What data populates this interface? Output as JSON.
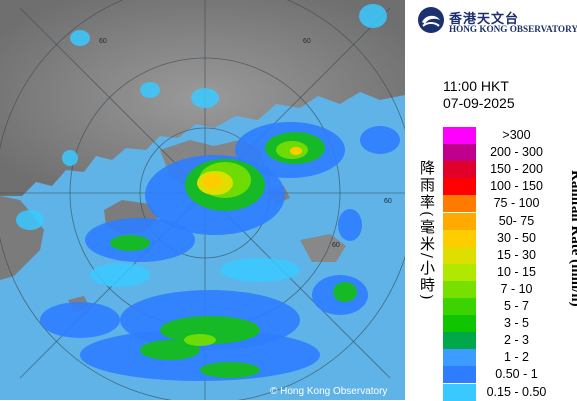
{
  "logo": {
    "chinese_name": "香港天文台",
    "english_name": "HONG KONG OBSERVATORY"
  },
  "time": "11:00 HKT",
  "date": "07-09-2025",
  "unit_label": "Rainfall Rate (mm/h)",
  "unit_label_zh": "降雨率(毫米/小時)",
  "copyright": "© Hong Kong Observatory",
  "range_ring_labels": [
    "60",
    "60",
    "60",
    "60"
  ],
  "legend": [
    {
      "label": ">300",
      "color": "#ff00ff"
    },
    {
      "label": "200 - 300",
      "color": "#c0008c"
    },
    {
      "label": "150 - 200",
      "color": "#e0002a"
    },
    {
      "label": "100 - 150",
      "color": "#ff0000"
    },
    {
      "label": "75 - 100",
      "color": "#ff7a00"
    },
    {
      "label": "50- 75",
      "color": "#ffaa00"
    },
    {
      "label": "30 - 50",
      "color": "#ffcc00"
    },
    {
      "label": "15 - 30",
      "color": "#dede00"
    },
    {
      "label": "10 - 15",
      "color": "#b0e800"
    },
    {
      "label": "7 - 10",
      "color": "#78e000"
    },
    {
      "label": "5 - 7",
      "color": "#3cd400"
    },
    {
      "label": "3 - 5",
      "color": "#10c400"
    },
    {
      "label": "2 - 3",
      "color": "#00a84a"
    },
    {
      "label": "1 - 2",
      "color": "#3c9cff"
    },
    {
      "label": "0.50 - 1",
      "color": "#2e7dff"
    },
    {
      "label": "0.15 - 0.50",
      "color": "#39c9ff"
    }
  ]
}
